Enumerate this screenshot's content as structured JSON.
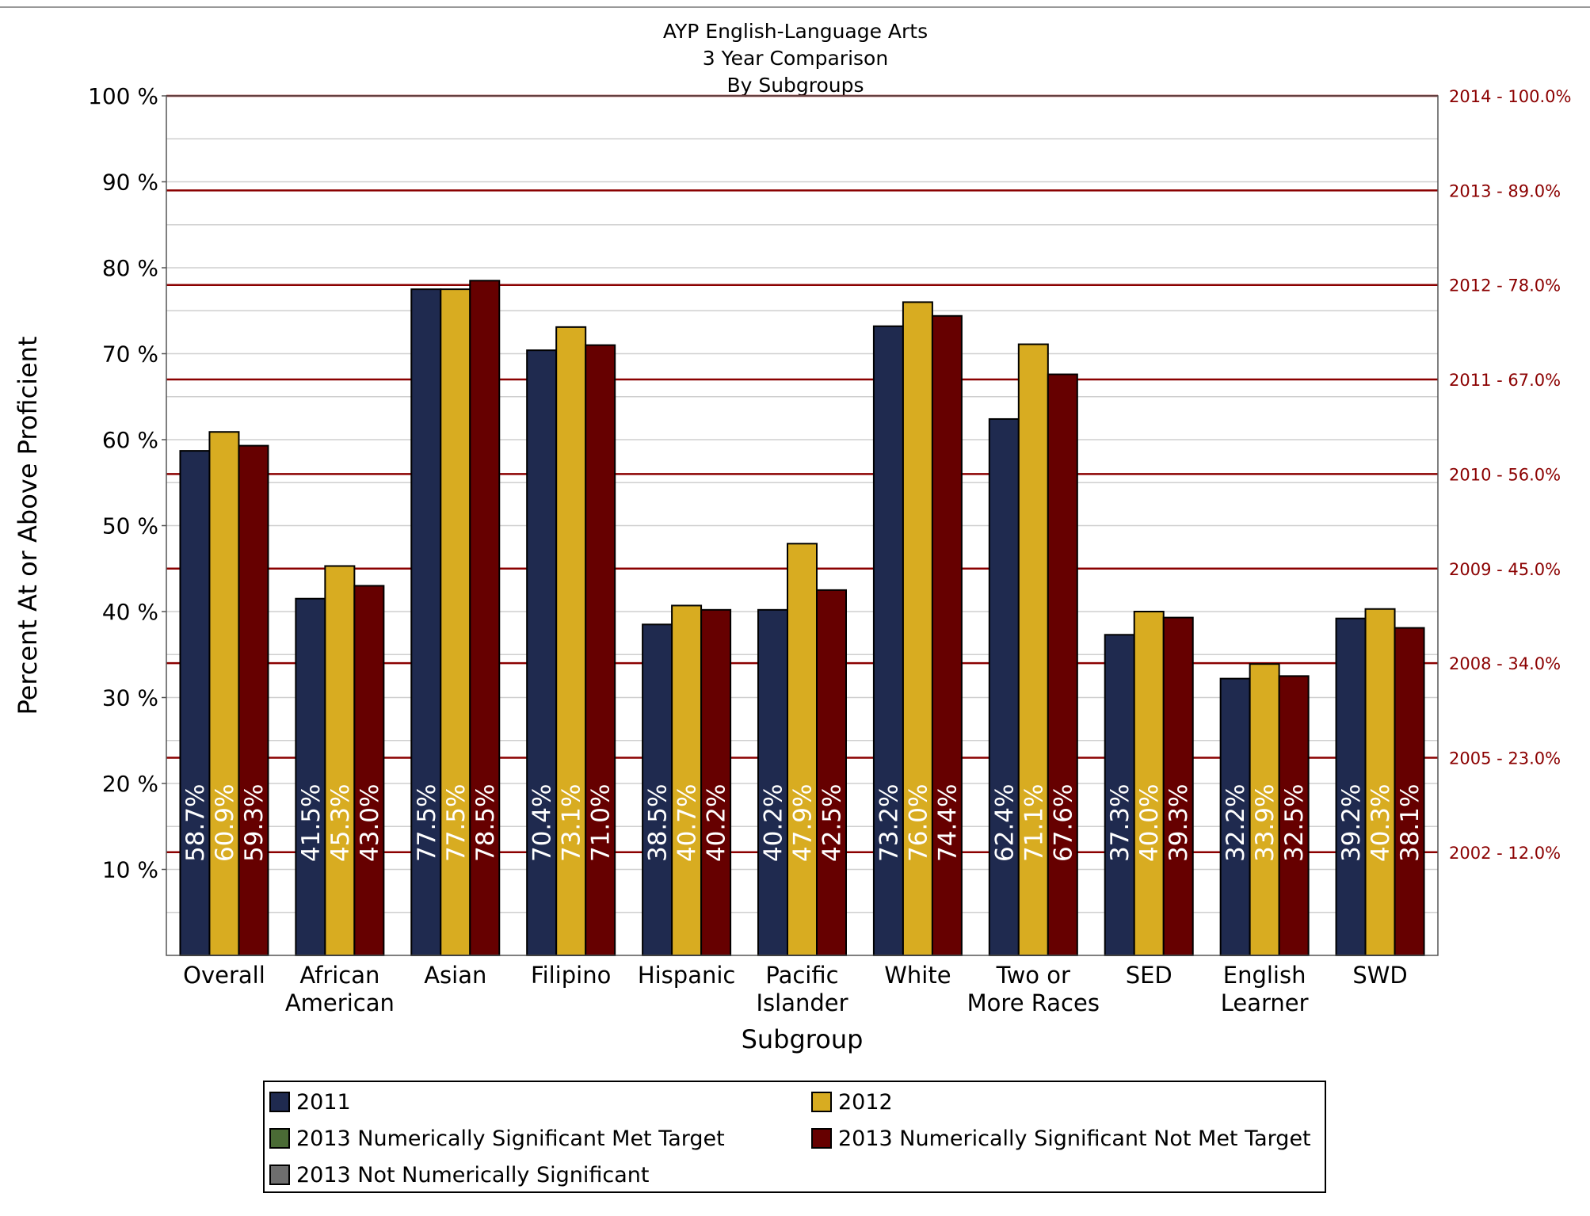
{
  "chart_data": {
    "type": "bar",
    "title": [
      "AYP English-Language Arts",
      "3 Year Comparison",
      "By Subgroups"
    ],
    "xlabel": "Subgroup",
    "ylabel": "Percent At or Above Proficient",
    "ylim": [
      0,
      100
    ],
    "y_ticks": [
      {
        "value": 10,
        "label": "10 %"
      },
      {
        "value": 20,
        "label": "20 %"
      },
      {
        "value": 30,
        "label": "30 %"
      },
      {
        "value": 40,
        "label": "40 %"
      },
      {
        "value": 50,
        "label": "50 %"
      },
      {
        "value": 60,
        "label": "60 %"
      },
      {
        "value": 70,
        "label": "70 %"
      },
      {
        "value": 80,
        "label": "80 %"
      },
      {
        "value": 90,
        "label": "90 %"
      },
      {
        "value": 100,
        "label": "100 %"
      }
    ],
    "grid": true,
    "categories": [
      [
        "Overall"
      ],
      [
        "African",
        "American"
      ],
      [
        "Asian"
      ],
      [
        "Filipino"
      ],
      [
        "Hispanic"
      ],
      [
        "Pacific",
        "Islander"
      ],
      [
        "White"
      ],
      [
        "Two or",
        "More Races"
      ],
      [
        "SED"
      ],
      [
        "English",
        "Learner"
      ],
      [
        "SWD"
      ]
    ],
    "series": [
      {
        "name": "2011",
        "color": "#1f2a4f",
        "label_color": "#ffffff",
        "values": [
          58.7,
          41.5,
          77.5,
          70.4,
          38.5,
          40.2,
          73.2,
          62.4,
          37.3,
          32.2,
          39.2
        ],
        "labels": [
          "58.7%",
          "41.5%",
          "77.5%",
          "70.4%",
          "38.5%",
          "40.2%",
          "73.2%",
          "62.4%",
          "37.3%",
          "32.2%",
          "39.2%"
        ]
      },
      {
        "name": "2012",
        "color": "#d8ac21",
        "label_color": "#ffffff",
        "values": [
          60.9,
          45.3,
          77.5,
          73.1,
          40.7,
          47.9,
          76.0,
          71.1,
          40.0,
          33.9,
          40.3
        ],
        "labels": [
          "60.9%",
          "45.3%",
          "77.5%",
          "73.1%",
          "40.7%",
          "47.9%",
          "76.0%",
          "71.1%",
          "40.0%",
          "33.9%",
          "40.3%"
        ]
      },
      {
        "name": "2013",
        "color": "#660000",
        "label_color": "#ffffff",
        "values": [
          59.3,
          43.0,
          78.5,
          71.0,
          40.2,
          42.5,
          74.4,
          67.6,
          39.3,
          32.5,
          38.1
        ],
        "labels": [
          "59.3%",
          "43.0%",
          "78.5%",
          "71.0%",
          "40.2%",
          "42.5%",
          "74.4%",
          "67.6%",
          "39.3%",
          "32.5%",
          "38.1%"
        ]
      }
    ],
    "target_lines": {
      "color": "#8b0000",
      "items": [
        {
          "value": 100.0,
          "label": "2014 - 100.0%"
        },
        {
          "value": 89.0,
          "label": "2013 - 89.0%"
        },
        {
          "value": 78.0,
          "label": "2012 - 78.0%"
        },
        {
          "value": 67.0,
          "label": "2011 - 67.0%"
        },
        {
          "value": 56.0,
          "label": "2010 - 56.0%"
        },
        {
          "value": 45.0,
          "label": "2009 - 45.0%"
        },
        {
          "value": 34.0,
          "label": "2008 - 34.0%"
        },
        {
          "value": 23.0,
          "label": "2005 - 23.0%"
        },
        {
          "value": 12.0,
          "label": "2002 - 12.0%"
        }
      ]
    },
    "legend": {
      "placement": "bottom",
      "items": [
        {
          "label": "2011",
          "color": "#1f2a4f"
        },
        {
          "label": "2012",
          "color": "#d8ac21"
        },
        {
          "label": "2013 Numerically Significant Met Target",
          "color": "#4a6b35"
        },
        {
          "label": "2013 Numerically Significant Not Met Target",
          "color": "#660000"
        },
        {
          "label": "2013 Not Numerically Significant",
          "color": "#6e6e6e"
        }
      ]
    }
  }
}
